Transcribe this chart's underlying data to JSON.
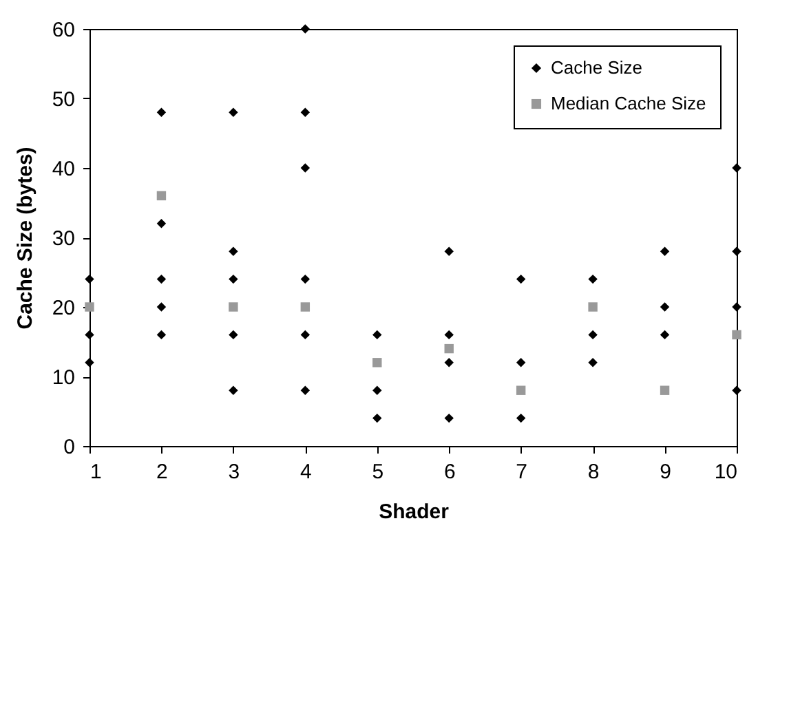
{
  "chart_data": {
    "type": "scatter",
    "xlabel": "Shader",
    "ylabel": "Cache Size (bytes)",
    "xlim": [
      1,
      10
    ],
    "xticks": [
      1,
      2,
      3,
      4,
      5,
      6,
      7,
      8,
      9,
      10
    ],
    "ylim": [
      0,
      60
    ],
    "yticks": [
      0,
      10,
      20,
      30,
      40,
      50,
      60
    ],
    "grid": false,
    "legend": "top right",
    "series": [
      {
        "name": "Cache Size",
        "color": "#000000",
        "marker": "diamond",
        "x": [
          1,
          1,
          1,
          2,
          2,
          2,
          2,
          2,
          3,
          3,
          3,
          3,
          3,
          4,
          4,
          4,
          4,
          4,
          4,
          5,
          5,
          5,
          6,
          6,
          6,
          6,
          7,
          7,
          7,
          8,
          8,
          8,
          9,
          9,
          9,
          10,
          10,
          10,
          10
        ],
        "values": [
          24,
          16,
          12,
          48,
          32,
          24,
          20,
          16,
          48,
          28,
          24,
          16,
          8,
          60,
          48,
          40,
          24,
          16,
          8,
          16,
          8,
          4,
          28,
          16,
          12,
          4,
          24,
          12,
          4,
          24,
          16,
          12,
          28,
          20,
          16,
          40,
          28,
          20,
          8
        ]
      },
      {
        "name": "Median Cache Size",
        "color": "#999999",
        "marker": "square",
        "x": [
          1,
          2,
          3,
          4,
          5,
          6,
          7,
          8,
          9,
          10
        ],
        "values": [
          20,
          36,
          20,
          20,
          12,
          14,
          8,
          20,
          8,
          16
        ]
      }
    ]
  }
}
